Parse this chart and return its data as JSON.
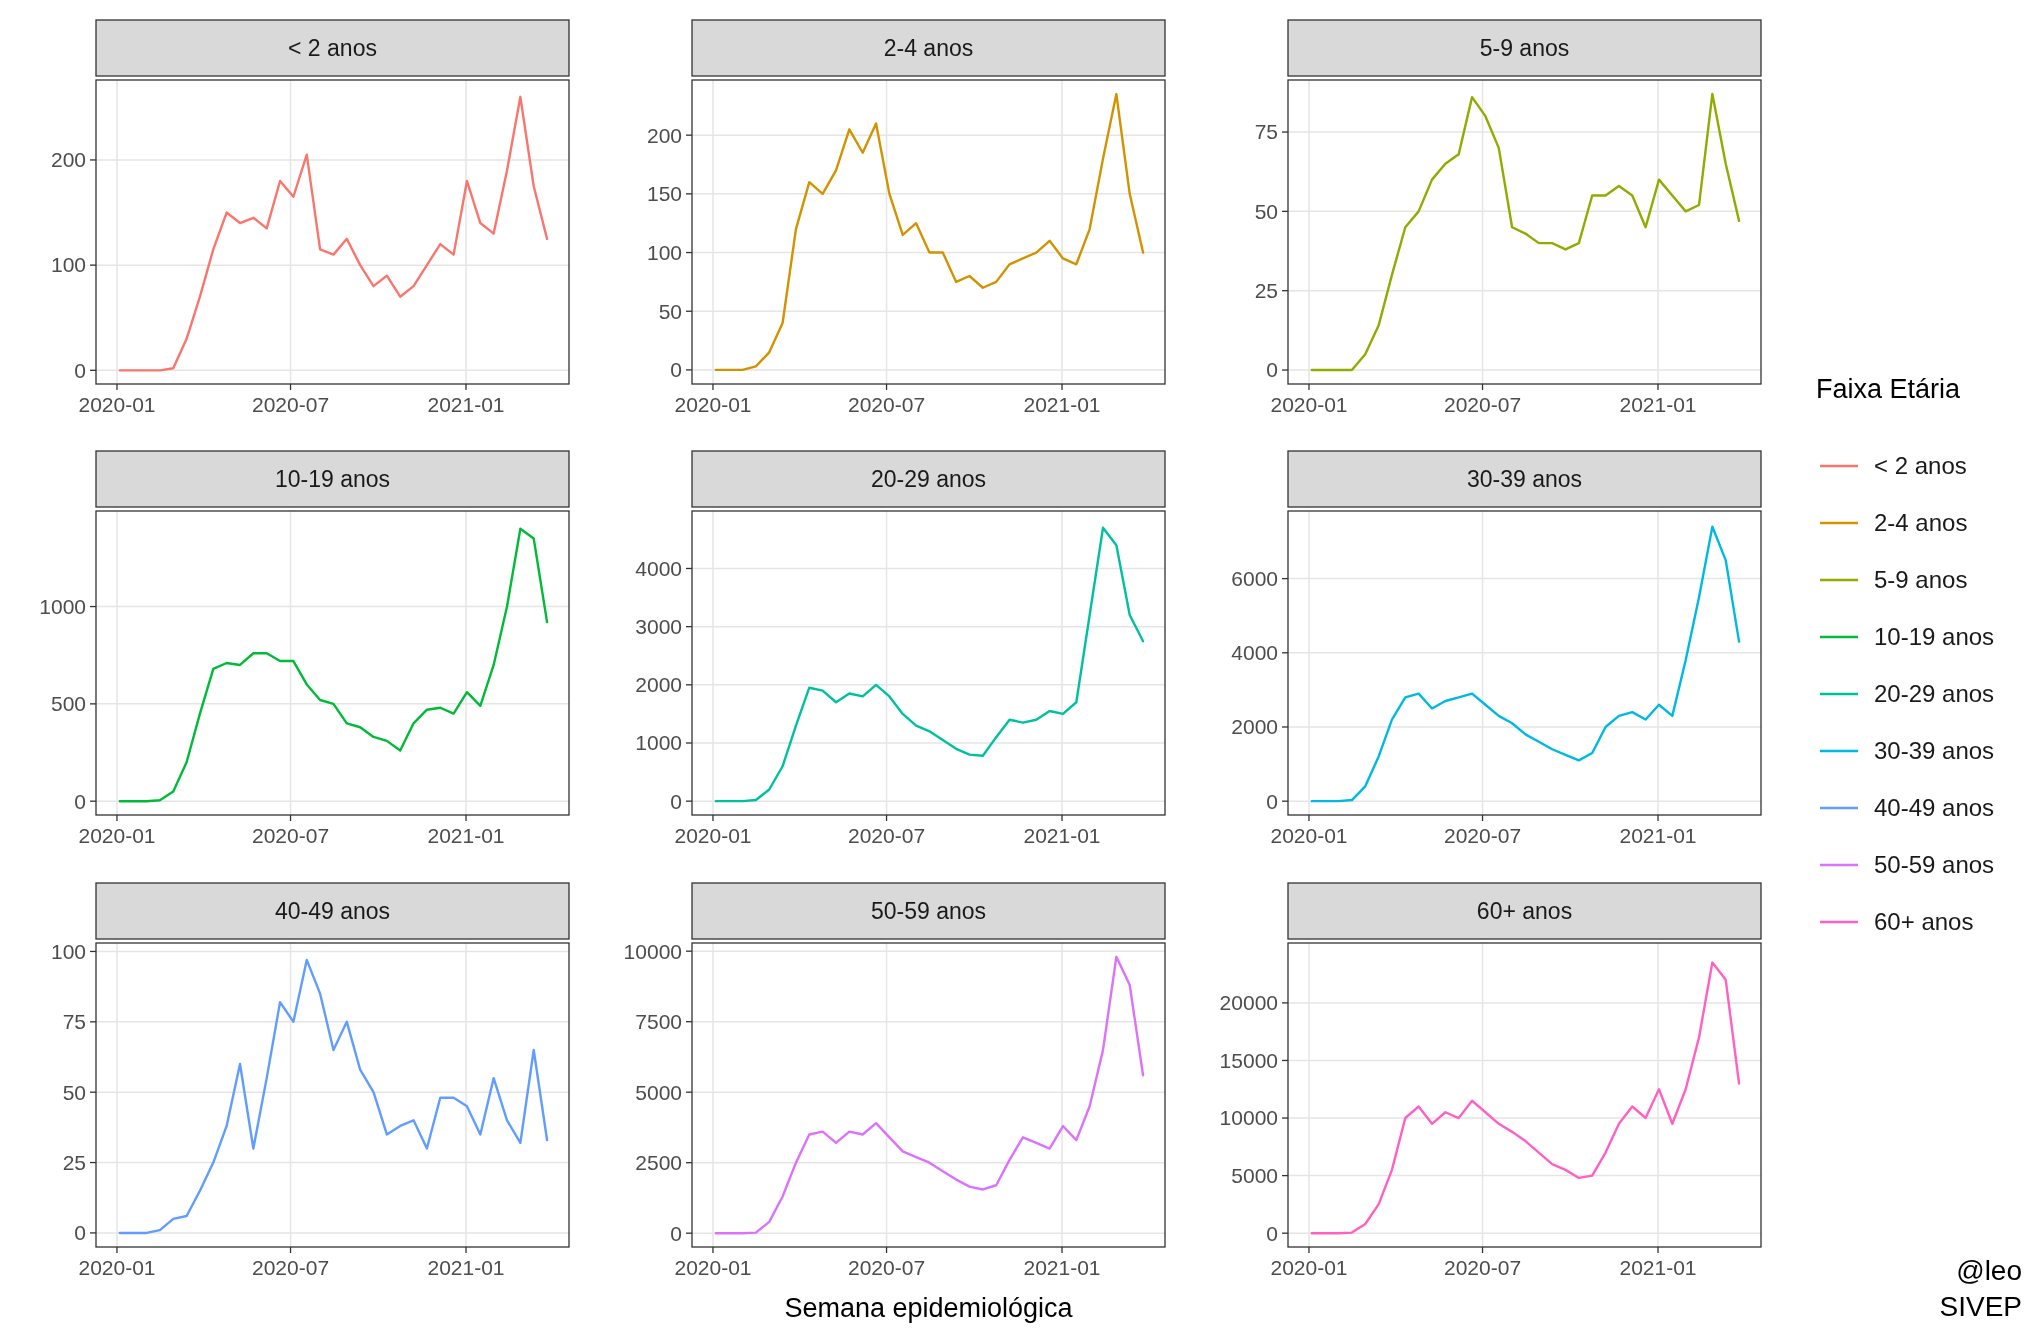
{
  "chart_data": [
    {
      "type": "line",
      "title": "< 2 anos",
      "legend": "right",
      "legend_title": "Faixa Etária",
      "grid": true,
      "xlim": [
        "2019-12-10",
        "2021-04-19"
      ],
      "xticks": [
        "2020-01",
        "2020-07",
        "2021-01"
      ],
      "ylim": [
        -13,
        276
      ],
      "yticks": [
        0,
        100,
        200
      ],
      "x": [
        "2020-01-04",
        "2020-01-18",
        "2020-02-01",
        "2020-02-15",
        "2020-02-29",
        "2020-03-14",
        "2020-03-28",
        "2020-04-11",
        "2020-04-25",
        "2020-05-09",
        "2020-05-23",
        "2020-06-06",
        "2020-06-20",
        "2020-07-04",
        "2020-07-18",
        "2020-08-01",
        "2020-08-15",
        "2020-08-29",
        "2020-09-12",
        "2020-09-26",
        "2020-10-10",
        "2020-10-24",
        "2020-11-07",
        "2020-11-21",
        "2020-12-05",
        "2020-12-19",
        "2021-01-02",
        "2021-01-16",
        "2021-01-30",
        "2021-02-13",
        "2021-02-27",
        "2021-03-13",
        "2021-03-27"
      ],
      "series": [
        {
          "name": "< 2 anos",
          "color": "#f8766d",
          "values": [
            0,
            0,
            0,
            0,
            2,
            30,
            70,
            115,
            150,
            140,
            145,
            135,
            180,
            165,
            205,
            115,
            110,
            125,
            100,
            80,
            90,
            70,
            80,
            100,
            120,
            110,
            180,
            140,
            130,
            190,
            260,
            175,
            125
          ]
        }
      ]
    },
    {
      "type": "line",
      "title": "2-4 anos",
      "grid": true,
      "xlim": [
        "2019-12-10",
        "2021-04-19"
      ],
      "xticks": [
        "2020-01",
        "2020-07",
        "2021-01"
      ],
      "ylim": [
        -12,
        247
      ],
      "yticks": [
        0,
        50,
        100,
        150,
        200
      ],
      "x": [
        "2020-01-04",
        "2020-01-18",
        "2020-02-01",
        "2020-02-15",
        "2020-02-29",
        "2020-03-14",
        "2020-03-28",
        "2020-04-11",
        "2020-04-25",
        "2020-05-09",
        "2020-05-23",
        "2020-06-06",
        "2020-06-20",
        "2020-07-04",
        "2020-07-18",
        "2020-08-01",
        "2020-08-15",
        "2020-08-29",
        "2020-09-12",
        "2020-09-26",
        "2020-10-10",
        "2020-10-24",
        "2020-11-07",
        "2020-11-21",
        "2020-12-05",
        "2020-12-19",
        "2021-01-02",
        "2021-01-16",
        "2021-01-30",
        "2021-02-13",
        "2021-02-27",
        "2021-03-13",
        "2021-03-27"
      ],
      "series": [
        {
          "name": "2-4 anos",
          "color": "#d39200",
          "values": [
            0,
            0,
            0,
            3,
            15,
            40,
            120,
            160,
            150,
            170,
            205,
            185,
            210,
            150,
            115,
            125,
            100,
            100,
            75,
            80,
            70,
            75,
            90,
            95,
            100,
            110,
            95,
            90,
            120,
            180,
            235,
            150,
            100
          ]
        }
      ]
    },
    {
      "type": "line",
      "title": "5-9 anos",
      "grid": true,
      "xlim": [
        "2019-12-10",
        "2021-04-19"
      ],
      "xticks": [
        "2020-01",
        "2020-07",
        "2021-01"
      ],
      "ylim": [
        -4.4,
        91.4
      ],
      "yticks": [
        0,
        25,
        50,
        75
      ],
      "x": [
        "2020-01-04",
        "2020-01-18",
        "2020-02-01",
        "2020-02-15",
        "2020-02-29",
        "2020-03-14",
        "2020-03-28",
        "2020-04-11",
        "2020-04-25",
        "2020-05-09",
        "2020-05-23",
        "2020-06-06",
        "2020-06-20",
        "2020-07-04",
        "2020-07-18",
        "2020-08-01",
        "2020-08-15",
        "2020-08-29",
        "2020-09-12",
        "2020-09-26",
        "2020-10-10",
        "2020-10-24",
        "2020-11-07",
        "2020-11-21",
        "2020-12-05",
        "2020-12-19",
        "2021-01-02",
        "2021-01-16",
        "2021-01-30",
        "2021-02-13",
        "2021-02-27",
        "2021-03-13",
        "2021-03-27"
      ],
      "series": [
        {
          "name": "5-9 anos",
          "color": "#93aa00",
          "values": [
            0,
            0,
            0,
            0,
            5,
            14,
            30,
            45,
            50,
            60,
            65,
            68,
            86,
            80,
            70,
            45,
            43,
            40,
            40,
            38,
            40,
            55,
            55,
            58,
            55,
            45,
            60,
            55,
            50,
            52,
            87,
            65,
            47
          ]
        }
      ]
    },
    {
      "type": "line",
      "title": "10-19 anos",
      "grid": true,
      "xlim": [
        "2019-12-10",
        "2021-04-19"
      ],
      "xticks": [
        "2020-01",
        "2020-07",
        "2021-01"
      ],
      "ylim": [
        -71,
        1491
      ],
      "yticks": [
        0,
        500,
        1000
      ],
      "x": [
        "2020-01-04",
        "2020-01-18",
        "2020-02-01",
        "2020-02-15",
        "2020-02-29",
        "2020-03-14",
        "2020-03-28",
        "2020-04-11",
        "2020-04-25",
        "2020-05-09",
        "2020-05-23",
        "2020-06-06",
        "2020-06-20",
        "2020-07-04",
        "2020-07-18",
        "2020-08-01",
        "2020-08-15",
        "2020-08-29",
        "2020-09-12",
        "2020-09-26",
        "2020-10-10",
        "2020-10-24",
        "2020-11-07",
        "2020-11-21",
        "2020-12-05",
        "2020-12-19",
        "2021-01-02",
        "2021-01-16",
        "2021-01-30",
        "2021-02-13",
        "2021-02-27",
        "2021-03-13",
        "2021-03-27"
      ],
      "series": [
        {
          "name": "10-19 anos",
          "color": "#00ba38",
          "values": [
            0,
            0,
            0,
            5,
            50,
            200,
            450,
            680,
            710,
            700,
            760,
            760,
            720,
            720,
            600,
            520,
            500,
            400,
            380,
            330,
            310,
            260,
            400,
            470,
            480,
            450,
            560,
            490,
            700,
            1000,
            1400,
            1350,
            920
          ]
        }
      ]
    },
    {
      "type": "line",
      "title": "20-29 anos",
      "grid": true,
      "xlim": [
        "2019-12-10",
        "2021-04-19"
      ],
      "xticks": [
        "2020-01",
        "2020-07",
        "2021-01"
      ],
      "ylim": [
        -238,
        4988
      ],
      "yticks": [
        0,
        1000,
        2000,
        3000,
        4000
      ],
      "x": [
        "2020-01-04",
        "2020-01-18",
        "2020-02-01",
        "2020-02-15",
        "2020-02-29",
        "2020-03-14",
        "2020-03-28",
        "2020-04-11",
        "2020-04-25",
        "2020-05-09",
        "2020-05-23",
        "2020-06-06",
        "2020-06-20",
        "2020-07-04",
        "2020-07-18",
        "2020-08-01",
        "2020-08-15",
        "2020-08-29",
        "2020-09-12",
        "2020-09-26",
        "2020-10-10",
        "2020-10-24",
        "2020-11-07",
        "2020-11-21",
        "2020-12-05",
        "2020-12-19",
        "2021-01-02",
        "2021-01-16",
        "2021-01-30",
        "2021-02-13",
        "2021-02-27",
        "2021-03-13",
        "2021-03-27"
      ],
      "series": [
        {
          "name": "20-29 anos",
          "color": "#00c19f",
          "values": [
            0,
            0,
            0,
            20,
            200,
            600,
            1300,
            1950,
            1900,
            1700,
            1850,
            1800,
            2000,
            1800,
            1500,
            1300,
            1200,
            1050,
            900,
            800,
            780,
            1100,
            1400,
            1350,
            1400,
            1550,
            1500,
            1700,
            3200,
            4700,
            4400,
            3200,
            2750
          ]
        }
      ]
    },
    {
      "type": "line",
      "title": "30-39 anos",
      "grid": true,
      "xlim": [
        "2019-12-10",
        "2021-04-19"
      ],
      "xticks": [
        "2020-01",
        "2020-07",
        "2021-01"
      ],
      "ylim": [
        -373,
        7823
      ],
      "yticks": [
        0,
        2000,
        4000,
        6000
      ],
      "x": [
        "2020-01-04",
        "2020-01-18",
        "2020-02-01",
        "2020-02-15",
        "2020-02-29",
        "2020-03-14",
        "2020-03-28",
        "2020-04-11",
        "2020-04-25",
        "2020-05-09",
        "2020-05-23",
        "2020-06-06",
        "2020-06-20",
        "2020-07-04",
        "2020-07-18",
        "2020-08-01",
        "2020-08-15",
        "2020-08-29",
        "2020-09-12",
        "2020-09-26",
        "2020-10-10",
        "2020-10-24",
        "2020-11-07",
        "2020-11-21",
        "2020-12-05",
        "2020-12-19",
        "2021-01-02",
        "2021-01-16",
        "2021-01-30",
        "2021-02-13",
        "2021-02-27",
        "2021-03-13",
        "2021-03-27"
      ],
      "series": [
        {
          "name": "30-39 anos",
          "color": "#00b9e3",
          "values": [
            0,
            0,
            0,
            30,
            400,
            1200,
            2200,
            2800,
            2900,
            2500,
            2700,
            2800,
            2900,
            2600,
            2300,
            2100,
            1800,
            1600,
            1400,
            1250,
            1100,
            1300,
            2000,
            2300,
            2400,
            2200,
            2600,
            2300,
            3800,
            5500,
            7400,
            6500,
            4300
          ]
        }
      ]
    },
    {
      "type": "line",
      "title": "40-49 anos",
      "grid": true,
      "xlim": [
        "2019-12-10",
        "2021-04-19"
      ],
      "xticks": [
        "2020-01",
        "2020-07",
        "2021-01"
      ],
      "ylim": [
        -5,
        103
      ],
      "yticks": [
        0,
        25,
        50,
        75,
        100
      ],
      "x": [
        "2020-01-04",
        "2020-01-18",
        "2020-02-01",
        "2020-02-15",
        "2020-02-29",
        "2020-03-14",
        "2020-03-28",
        "2020-04-11",
        "2020-04-25",
        "2020-05-09",
        "2020-05-23",
        "2020-06-06",
        "2020-06-20",
        "2020-07-04",
        "2020-07-18",
        "2020-08-01",
        "2020-08-15",
        "2020-08-29",
        "2020-09-12",
        "2020-09-26",
        "2020-10-10",
        "2020-10-24",
        "2020-11-07",
        "2020-11-21",
        "2020-12-05",
        "2020-12-19",
        "2021-01-02",
        "2021-01-16",
        "2021-01-30",
        "2021-02-13",
        "2021-02-27",
        "2021-03-13",
        "2021-03-27"
      ],
      "series": [
        {
          "name": "40-49 anos",
          "color": "#619cff",
          "values": [
            0,
            0,
            0,
            1,
            5,
            6,
            15,
            25,
            38,
            60,
            30,
            55,
            82,
            75,
            97,
            85,
            65,
            75,
            58,
            50,
            35,
            38,
            40,
            30,
            48,
            48,
            45,
            35,
            55,
            40,
            32,
            65,
            33
          ]
        }
      ]
    },
    {
      "type": "line",
      "title": "50-59 anos",
      "xlabel": "Semana epidemiológica",
      "grid": true,
      "xlim": [
        "2019-12-10",
        "2021-04-19"
      ],
      "xticks": [
        "2020-01",
        "2020-07",
        "2021-01"
      ],
      "ylim": [
        -490,
        10290
      ],
      "yticks": [
        0,
        2500,
        5000,
        7500,
        10000
      ],
      "x": [
        "2020-01-04",
        "2020-01-18",
        "2020-02-01",
        "2020-02-15",
        "2020-02-29",
        "2020-03-14",
        "2020-03-28",
        "2020-04-11",
        "2020-04-25",
        "2020-05-09",
        "2020-05-23",
        "2020-06-06",
        "2020-06-20",
        "2020-07-04",
        "2020-07-18",
        "2020-08-01",
        "2020-08-15",
        "2020-08-29",
        "2020-09-12",
        "2020-09-26",
        "2020-10-10",
        "2020-10-24",
        "2020-11-07",
        "2020-11-21",
        "2020-12-05",
        "2020-12-19",
        "2021-01-02",
        "2021-01-16",
        "2021-01-30",
        "2021-02-13",
        "2021-02-27",
        "2021-03-13",
        "2021-03-27"
      ],
      "series": [
        {
          "name": "50-59 anos",
          "color": "#db72fb",
          "values": [
            0,
            0,
            0,
            20,
            400,
            1300,
            2500,
            3500,
            3600,
            3200,
            3600,
            3500,
            3900,
            3400,
            2900,
            2700,
            2500,
            2200,
            1900,
            1650,
            1550,
            1700,
            2600,
            3400,
            3200,
            3000,
            3800,
            3300,
            4500,
            6500,
            9800,
            8800,
            5600
          ]
        }
      ]
    },
    {
      "type": "line",
      "title": "60+ anos",
      "annotations": [
        "@leo",
        "SIVEP"
      ],
      "grid": true,
      "xlim": [
        "2019-12-10",
        "2021-04-19"
      ],
      "xticks": [
        "2020-01",
        "2020-07",
        "2021-01"
      ],
      "ylim": [
        -1200,
        25200
      ],
      "yticks": [
        0,
        5000,
        10000,
        15000,
        20000
      ],
      "x": [
        "2020-01-04",
        "2020-01-18",
        "2020-02-01",
        "2020-02-15",
        "2020-02-29",
        "2020-03-14",
        "2020-03-28",
        "2020-04-11",
        "2020-04-25",
        "2020-05-09",
        "2020-05-23",
        "2020-06-06",
        "2020-06-20",
        "2020-07-04",
        "2020-07-18",
        "2020-08-01",
        "2020-08-15",
        "2020-08-29",
        "2020-09-12",
        "2020-09-26",
        "2020-10-10",
        "2020-10-24",
        "2020-11-07",
        "2020-11-21",
        "2020-12-05",
        "2020-12-19",
        "2021-01-02",
        "2021-01-16",
        "2021-01-30",
        "2021-02-13",
        "2021-02-27",
        "2021-03-13",
        "2021-03-27"
      ],
      "series": [
        {
          "name": "60+ anos",
          "color": "#ff61c3",
          "values": [
            0,
            0,
            0,
            50,
            800,
            2500,
            5500,
            10000,
            11000,
            9500,
            10500,
            10000,
            11500,
            10500,
            9500,
            8800,
            8000,
            7000,
            6000,
            5500,
            4800,
            5000,
            7000,
            9500,
            11000,
            10000,
            12500,
            9500,
            12500,
            17000,
            23500,
            22000,
            13000
          ]
        }
      ]
    }
  ]
}
